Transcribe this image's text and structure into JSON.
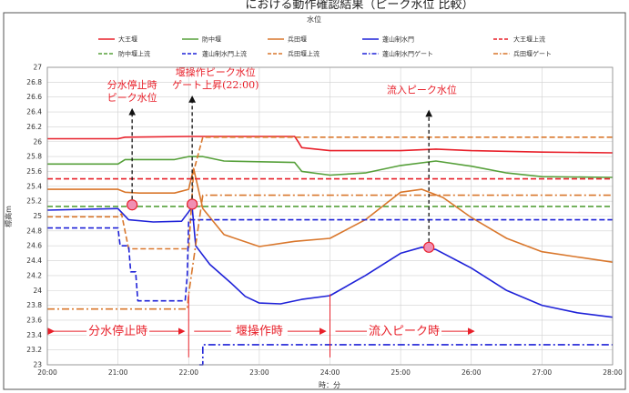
{
  "header_text": "における動作確認結果（ピーク水位 比較）",
  "chart_data": {
    "type": "line",
    "title": "水位",
    "xlabel": "時：分",
    "ylabel": "標高m",
    "xlim": [
      20,
      28
    ],
    "ylim": [
      23,
      27
    ],
    "x_ticks": [
      {
        "v": 20,
        "label": "20:00"
      },
      {
        "v": 21,
        "label": "21:00"
      },
      {
        "v": 22,
        "label": "22:00"
      },
      {
        "v": 23,
        "label": "23:00"
      },
      {
        "v": 24,
        "label": "24:00"
      },
      {
        "v": 25,
        "label": "25:00"
      },
      {
        "v": 26,
        "label": "26:00"
      },
      {
        "v": 27,
        "label": "27:00"
      },
      {
        "v": 28,
        "label": "28:00"
      }
    ],
    "y_ticks": [
      "23",
      "23.2",
      "23.4",
      "23.6",
      "23.8",
      "24",
      "24.2",
      "24.4",
      "24.6",
      "24.8",
      "25",
      "25.2",
      "25.4",
      "25.6",
      "25.8",
      "26",
      "26.2",
      "26.4",
      "26.6",
      "26.8",
      "27"
    ],
    "grid": true,
    "legend_position": "top",
    "series": [
      {
        "name": "大王堰",
        "color": "#e8202a",
        "dash": "solid",
        "x": [
          20,
          21.0,
          21.1,
          22.0,
          22.5,
          23.5,
          23.55,
          23.6,
          24.0,
          25.0,
          25.5,
          26.0,
          27.0,
          28.0
        ],
        "y": [
          26.04,
          26.04,
          26.06,
          26.07,
          26.07,
          26.07,
          26.0,
          25.92,
          25.88,
          25.88,
          25.9,
          25.88,
          25.86,
          25.85
        ]
      },
      {
        "name": "防中堰",
        "color": "#56a03a",
        "dash": "solid",
        "x": [
          20,
          21.0,
          21.1,
          21.8,
          22.0,
          22.2,
          22.5,
          23.5,
          23.6,
          24.0,
          24.5,
          25.0,
          25.5,
          26.0,
          26.5,
          27.0,
          28.0
        ],
        "y": [
          25.7,
          25.7,
          25.76,
          25.76,
          25.8,
          25.8,
          25.74,
          25.72,
          25.6,
          25.55,
          25.58,
          25.68,
          25.74,
          25.67,
          25.58,
          25.53,
          25.52
        ]
      },
      {
        "name": "兵田堰",
        "color": "#d9772c",
        "dash": "solid",
        "x": [
          20,
          21.0,
          21.1,
          21.3,
          21.8,
          22.0,
          22.07,
          22.2,
          22.5,
          23.0,
          23.5,
          24.0,
          24.5,
          25.0,
          25.3,
          25.6,
          26.0,
          26.5,
          27.0,
          27.5,
          28.0
        ],
        "y": [
          25.36,
          25.36,
          25.32,
          25.31,
          25.31,
          25.36,
          25.64,
          25.1,
          24.75,
          24.59,
          24.66,
          24.7,
          24.95,
          25.32,
          25.36,
          25.25,
          24.98,
          24.7,
          24.52,
          24.45,
          24.38
        ]
      },
      {
        "name": "蓬山制水門",
        "color": "#1f22d8",
        "dash": "solid",
        "x": [
          20,
          21.0,
          21.15,
          21.5,
          21.9,
          22.05,
          22.1,
          22.3,
          22.6,
          22.8,
          23.0,
          23.3,
          23.6,
          24.0,
          24.5,
          25.0,
          25.3,
          25.5,
          26.0,
          26.5,
          27.0,
          27.5,
          28.0
        ],
        "y": [
          25.08,
          25.1,
          24.95,
          24.92,
          24.93,
          25.12,
          24.6,
          24.35,
          24.1,
          23.92,
          23.83,
          23.82,
          23.88,
          23.93,
          24.2,
          24.5,
          24.58,
          24.55,
          24.3,
          24.0,
          23.8,
          23.7,
          23.64
        ]
      },
      {
        "name": "大王堰上流",
        "color": "#e8202a",
        "dash": "6,3",
        "x": [
          20,
          28
        ],
        "y": [
          25.5,
          25.5
        ]
      },
      {
        "name": "防中堰上流",
        "color": "#56a03a",
        "dash": "6,3",
        "x": [
          20,
          28
        ],
        "y": [
          25.13,
          25.13
        ]
      },
      {
        "name": "兵田堰上流",
        "color": "#d9772c",
        "dash": "6,3",
        "x": [
          20,
          21.0,
          21.05,
          21.15,
          21.15,
          21.95,
          22.0,
          22.07,
          22.2,
          28.0
        ],
        "y": [
          24.99,
          24.99,
          25.03,
          24.56,
          24.56,
          24.56,
          24.56,
          25.6,
          26.06,
          26.06
        ]
      },
      {
        "name": "蓬山制水門上流",
        "color": "#1f22d8",
        "dash": "6,3",
        "x": [
          20,
          21.0,
          21.03,
          21.15,
          21.18,
          21.25,
          21.28,
          21.95,
          21.98,
          22.0,
          28.0
        ],
        "y": [
          24.84,
          24.84,
          24.6,
          24.6,
          24.25,
          24.25,
          23.86,
          23.86,
          24.2,
          24.95,
          24.95
        ]
      },
      {
        "name": "兵田堰ゲート",
        "color": "#d9772c",
        "dash": "8,3,2,3",
        "x": [
          20,
          21.98,
          22.0,
          22.2,
          28.0
        ],
        "y": [
          23.75,
          23.75,
          23.95,
          25.28,
          25.28
        ]
      },
      {
        "name": "蓬山制水門ゲート",
        "color": "#1f22d8",
        "dash": "8,3,2,3",
        "x": [
          22.15,
          22.2,
          22.2,
          28.0
        ],
        "y": [
          23.0,
          23.0,
          23.27,
          23.27
        ]
      }
    ],
    "peak_markers": [
      {
        "x": 21.2,
        "y": 25.15
      },
      {
        "x": 22.05,
        "y": 25.16
      },
      {
        "x": 25.4,
        "y": 24.58
      }
    ],
    "annotations": [
      {
        "lines": [
          "分水停止時",
          "ピーク水位"
        ],
        "x": 21.2,
        "y": 26.55
      },
      {
        "lines": [
          "堰操作ピーク水位",
          "ゲート上昇(22:00)"
        ],
        "x": 22.38,
        "y": 26.72
      },
      {
        "lines": [
          "流入ピーク水位"
        ],
        "x": 25.3,
        "y": 26.48
      }
    ],
    "phases": [
      {
        "label": "分水停止時",
        "from": 20,
        "to": 22.0
      },
      {
        "label": "堰操作時",
        "from": 22.0,
        "to": 24.0
      },
      {
        "label": "流入ピーク時",
        "from": 24.0,
        "to": 26.1
      }
    ]
  }
}
